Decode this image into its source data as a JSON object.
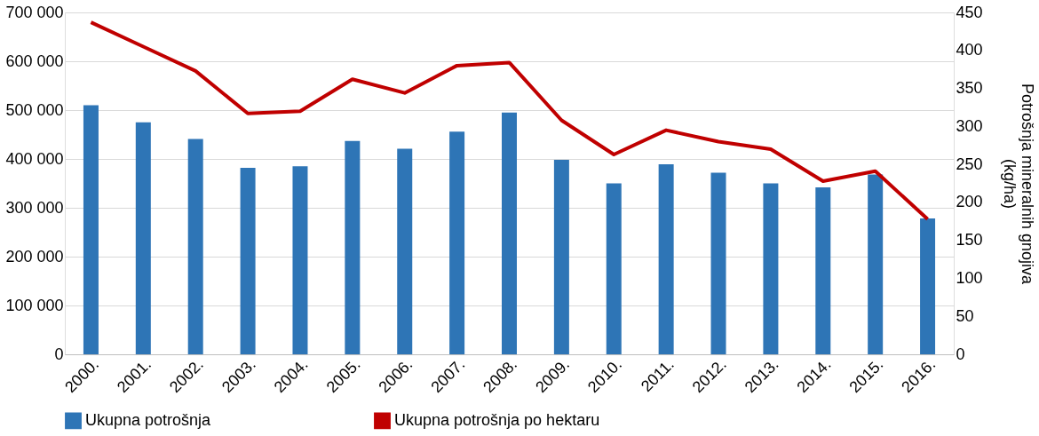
{
  "chart_data": {
    "type": "bar",
    "categories": [
      "2000.",
      "2001.",
      "2002.",
      "2003.",
      "2004.",
      "2005.",
      "2006.",
      "2007.",
      "2008.",
      "2009.",
      "2010.",
      "2011.",
      "2012.",
      "2013.",
      "2014.",
      "2015.",
      "2016."
    ],
    "series": [
      {
        "name": "Ukupna potrošnja",
        "color": "#2e75b6",
        "values": [
          510000,
          475000,
          441000,
          382000,
          385000,
          437000,
          421000,
          456000,
          495000,
          398000,
          350000,
          389000,
          372000,
          350000,
          342000,
          368000,
          278000
        ]
      },
      {
        "name": "Ukupna potrošnja po hektaru",
        "type": "line",
        "axis": "y2",
        "color": "#c00000",
        "values": [
          437,
          405,
          373,
          317,
          320,
          362,
          344,
          380,
          384,
          308,
          263,
          295,
          280,
          270,
          228,
          241,
          178
        ]
      }
    ],
    "ylim": [
      0,
      700000
    ],
    "yticks": [
      {
        "value": 0,
        "label": "0"
      },
      {
        "value": 100000,
        "label": "100 000"
      },
      {
        "value": 200000,
        "label": "200 000"
      },
      {
        "value": 300000,
        "label": "300 000"
      },
      {
        "value": 400000,
        "label": "400 000"
      },
      {
        "value": 500000,
        "label": "500 000"
      },
      {
        "value": 600000,
        "label": "600 000"
      },
      {
        "value": 700000,
        "label": "700 000"
      }
    ],
    "y2lim": [
      0,
      450
    ],
    "y2ticks": [
      0,
      50,
      100,
      150,
      200,
      250,
      300,
      350,
      400,
      450
    ],
    "y2label": "Potrošnja mineralnih gnojiva (kg/ha)",
    "grid": "y",
    "legend": "bottom",
    "line_style": "solid",
    "marker": "none"
  }
}
